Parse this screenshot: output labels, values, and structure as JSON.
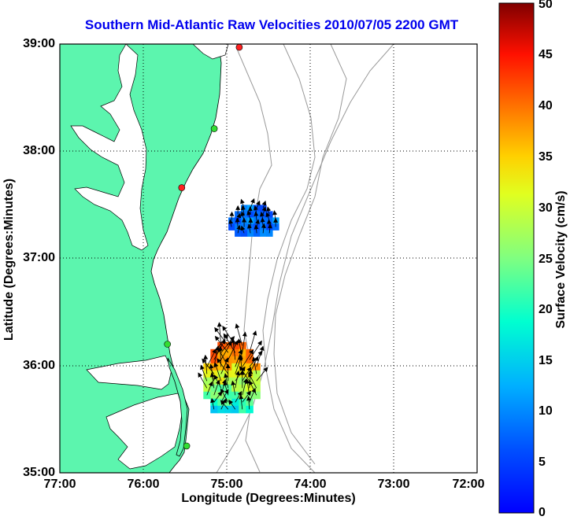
{
  "title": "Southern Mid-Atlantic Raw Velocities 2010/07/05 2200 GMT",
  "x_axis": {
    "label": "Longitude (Degrees:Minutes)",
    "ticks": [
      "77:00",
      "76:00",
      "75:00",
      "74:00",
      "73:00",
      "72:00"
    ]
  },
  "y_axis": {
    "label": "Latitude (Degrees:Minutes)",
    "ticks": [
      "39:00",
      "38:00",
      "37:00",
      "36:00",
      "35:00"
    ]
  },
  "colorbar": {
    "label": "Surface Velocity (cm/s)",
    "ticks": [
      "50",
      "45",
      "40",
      "35",
      "30",
      "25",
      "20",
      "15",
      "10",
      "5",
      "0"
    ],
    "min": 0,
    "max": 50,
    "colormap": "jet"
  },
  "colors": {
    "title": "#0000ee",
    "land": "#5cf5ae",
    "water": "#ffffff",
    "bathymetry": "#999999",
    "grid": "#000000"
  },
  "chart_data": {
    "type": "map-vector-field",
    "lon_range": [
      -77.0,
      -72.0
    ],
    "lat_range": [
      35.0,
      39.0
    ],
    "grid": true,
    "stations": [
      {
        "lon": -74.85,
        "lat": 38.97,
        "status": "red"
      },
      {
        "lon": -75.15,
        "lat": 38.21,
        "status": "green"
      },
      {
        "lon": -75.54,
        "lat": 37.66,
        "status": "red"
      },
      {
        "lon": -75.71,
        "lat": 36.2,
        "status": "green"
      },
      {
        "lon": -75.48,
        "lat": 35.25,
        "status": "green"
      }
    ],
    "velocity_regions": [
      {
        "name": "northern patch",
        "lon_range": [
          -74.98,
          -74.45
        ],
        "lat_range": [
          37.23,
          37.5
        ],
        "speed_range_cms": [
          5,
          12
        ],
        "dominant_direction": "north"
      },
      {
        "name": "southern patch",
        "lon_range": [
          -75.28,
          -74.68
        ],
        "lat_range": [
          35.58,
          36.22
        ],
        "speed_range_cms": [
          12,
          42
        ],
        "max_speed_cms": 42,
        "dominant_direction": "north"
      }
    ]
  }
}
